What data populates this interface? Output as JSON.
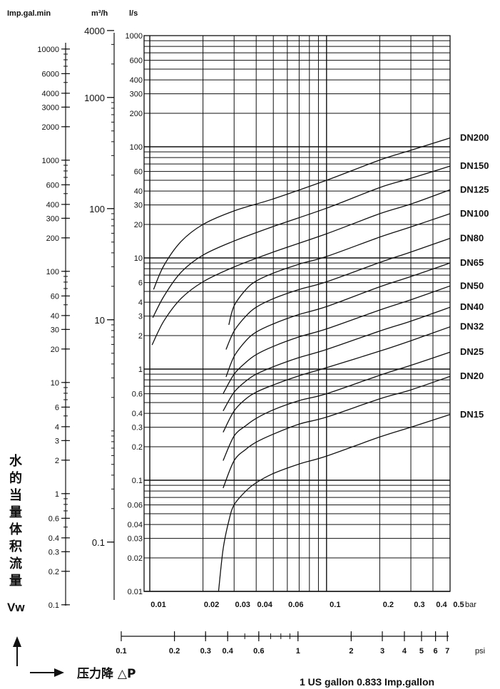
{
  "chart_data": {
    "type": "line",
    "title": "",
    "x_scale": "log",
    "y_scale": "log",
    "xlim": [
      0.01,
      0.5
    ],
    "ylim": [
      0.01,
      1000
    ],
    "grid": true,
    "y_axes": [
      {
        "unit_label": "Imp.gal.min",
        "ticks": [
          "10000",
          "6000",
          "4000",
          "3000",
          "2000",
          "1000",
          "600",
          "400",
          "300",
          "200",
          "100",
          "60",
          "40",
          "30",
          "20",
          "10",
          "6",
          "4",
          "3",
          "2",
          "1",
          "0.6",
          "0.4",
          "0.3",
          "0.2",
          "0.1"
        ]
      },
      {
        "unit_label": "m³/h",
        "ticks": [
          "4000",
          "1000",
          "100",
          "10",
          "0.1"
        ]
      },
      {
        "unit_label": "l/s",
        "ticks": [
          "1000",
          "600",
          "400",
          "300",
          "200",
          "100",
          "60",
          "40",
          "30",
          "20",
          "10",
          "6",
          "4",
          "3",
          "2",
          "1",
          "0.6",
          "0.4",
          "0.3",
          "0.2",
          "0.1",
          "0.06",
          "0.04",
          "0.03",
          "0.02",
          "0.01"
        ]
      }
    ],
    "x_axes": [
      {
        "unit_label": "bar",
        "ticks": [
          "0.01",
          "0.02",
          "0.03",
          "0.04",
          "0.06",
          "0.1",
          "0.2",
          "0.3",
          "0.4",
          "0.5"
        ]
      },
      {
        "unit_label": "psi",
        "ticks": [
          "0.1",
          "0.2",
          "0.3",
          "0.4",
          "0.6",
          "1",
          "2",
          "3",
          "4",
          "5",
          "6",
          "7"
        ]
      }
    ],
    "y_title": "水的当量体积流量",
    "y_symbol": "Vw",
    "x_title": "压力降 △P",
    "note": "1 US gallon 0.833 Imp.gallon",
    "series": [
      {
        "name": "DN200",
        "x": [
          0.0105,
          0.012,
          0.015,
          0.02,
          0.03,
          0.05,
          0.1,
          0.2,
          0.3,
          0.5
        ],
        "y": [
          5.2,
          8.5,
          14,
          20,
          26.5,
          34,
          50,
          76,
          93,
          120
        ]
      },
      {
        "name": "DN150",
        "x": [
          0.0104,
          0.012,
          0.015,
          0.02,
          0.03,
          0.05,
          0.1,
          0.2,
          0.3,
          0.5
        ],
        "y": [
          2.9,
          4.5,
          7.4,
          10.6,
          14.2,
          19.2,
          28,
          43,
          52,
          67
        ]
      },
      {
        "name": "DN125",
        "x": [
          0.0103,
          0.012,
          0.015,
          0.02,
          0.03,
          0.05,
          0.1,
          0.2,
          0.3,
          0.5
        ],
        "y": [
          1.65,
          2.7,
          4.3,
          6.1,
          8.3,
          11.3,
          16.5,
          25,
          30.5,
          41
        ]
      },
      {
        "name": "DN100",
        "x": [
          0.028,
          0.03,
          0.035,
          0.04,
          0.05,
          0.07,
          0.1,
          0.2,
          0.3,
          0.5
        ],
        "y": [
          2.5,
          3.7,
          5.2,
          6.2,
          7.3,
          8.8,
          10.3,
          15.4,
          19,
          25
        ]
      },
      {
        "name": "DN80",
        "x": [
          0.027,
          0.03,
          0.035,
          0.04,
          0.05,
          0.07,
          0.1,
          0.2,
          0.3,
          0.5
        ],
        "y": [
          1.5,
          2.2,
          3,
          3.6,
          4.3,
          5.2,
          6.1,
          9.1,
          11.3,
          15
        ]
      },
      {
        "name": "DN65",
        "x": [
          0.027,
          0.03,
          0.035,
          0.04,
          0.05,
          0.07,
          0.1,
          0.2,
          0.3,
          0.5
        ],
        "y": [
          0.85,
          1.3,
          1.8,
          2.15,
          2.55,
          3.1,
          3.65,
          5.5,
          6.8,
          9
        ]
      },
      {
        "name": "DN50",
        "x": [
          0.026,
          0.03,
          0.035,
          0.04,
          0.05,
          0.07,
          0.1,
          0.2,
          0.3,
          0.5
        ],
        "y": [
          0.6,
          0.9,
          1.15,
          1.35,
          1.6,
          1.95,
          2.3,
          3.4,
          4.2,
          5.6
        ]
      },
      {
        "name": "DN40",
        "x": [
          0.026,
          0.03,
          0.035,
          0.04,
          0.05,
          0.07,
          0.1,
          0.2,
          0.3,
          0.5
        ],
        "y": [
          0.42,
          0.62,
          0.78,
          0.9,
          1.05,
          1.27,
          1.5,
          2.2,
          2.7,
          3.6
        ]
      },
      {
        "name": "DN32",
        "x": [
          0.026,
          0.03,
          0.035,
          0.04,
          0.05,
          0.07,
          0.1,
          0.2,
          0.3,
          0.5
        ],
        "y": [
          0.27,
          0.42,
          0.54,
          0.62,
          0.72,
          0.87,
          1.03,
          1.45,
          1.8,
          2.4
        ]
      },
      {
        "name": "DN25",
        "x": [
          0.026,
          0.03,
          0.035,
          0.04,
          0.05,
          0.07,
          0.1,
          0.2,
          0.3,
          0.5
        ],
        "y": [
          0.15,
          0.25,
          0.31,
          0.36,
          0.43,
          0.52,
          0.6,
          0.88,
          1.08,
          1.42
        ]
      },
      {
        "name": "DN20",
        "x": [
          0.026,
          0.03,
          0.035,
          0.04,
          0.05,
          0.07,
          0.1,
          0.2,
          0.3,
          0.5
        ],
        "y": [
          0.085,
          0.15,
          0.19,
          0.22,
          0.26,
          0.32,
          0.37,
          0.54,
          0.65,
          0.86
        ]
      },
      {
        "name": "DN15",
        "x": [
          0.0245,
          0.026,
          0.028,
          0.03,
          0.035,
          0.04,
          0.05,
          0.07,
          0.1,
          0.2,
          0.3,
          0.5
        ],
        "y": [
          0.01,
          0.024,
          0.043,
          0.06,
          0.08,
          0.095,
          0.115,
          0.14,
          0.165,
          0.245,
          0.3,
          0.39
        ]
      }
    ]
  }
}
